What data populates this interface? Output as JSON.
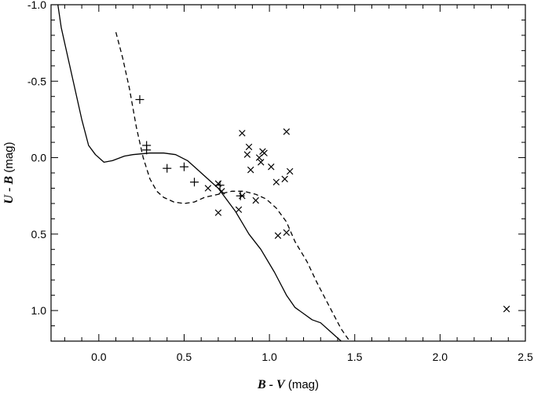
{
  "chart_data": {
    "type": "scatter",
    "title": "",
    "xlabel": {
      "bold_italic": "B - V",
      "plain": " (mag)"
    },
    "ylabel": {
      "bold_italic": "U - B",
      "plain": " (mag)"
    },
    "xlim": [
      -0.28,
      2.5
    ],
    "ylim": [
      1.2,
      -1.0
    ],
    "y_inverted": true,
    "grid": false,
    "x_ticks": [
      0.0,
      0.5,
      1.0,
      1.5,
      2.0,
      2.5
    ],
    "x_tick_labels": [
      "0.0",
      "0.5",
      "1.0",
      "1.5",
      "2.0",
      "2.5"
    ],
    "y_ticks": [
      -1.0,
      -0.5,
      0.0,
      0.5,
      1.0
    ],
    "y_tick_labels": [
      "-1.0",
      "-0.5",
      "0.0",
      "0.5",
      "1.0"
    ],
    "series": [
      {
        "name": "solid curve",
        "kind": "line",
        "style": "solid",
        "points": [
          [
            -0.24,
            -1.0
          ],
          [
            -0.22,
            -0.85
          ],
          [
            -0.18,
            -0.65
          ],
          [
            -0.14,
            -0.45
          ],
          [
            -0.1,
            -0.25
          ],
          [
            -0.06,
            -0.08
          ],
          [
            -0.02,
            -0.02
          ],
          [
            0.03,
            0.03
          ],
          [
            0.08,
            0.02
          ],
          [
            0.15,
            -0.01
          ],
          [
            0.2,
            -0.02
          ],
          [
            0.3,
            -0.03
          ],
          [
            0.38,
            -0.03
          ],
          [
            0.45,
            -0.02
          ],
          [
            0.52,
            0.02
          ],
          [
            0.6,
            0.1
          ],
          [
            0.7,
            0.2
          ],
          [
            0.8,
            0.35
          ],
          [
            0.88,
            0.5
          ],
          [
            0.95,
            0.6
          ],
          [
            1.03,
            0.75
          ],
          [
            1.1,
            0.9
          ],
          [
            1.15,
            0.98
          ],
          [
            1.2,
            1.02
          ],
          [
            1.25,
            1.06
          ],
          [
            1.3,
            1.08
          ],
          [
            1.35,
            1.13
          ],
          [
            1.42,
            1.2
          ]
        ]
      },
      {
        "name": "dashed curve",
        "kind": "line",
        "style": "dashed",
        "points": [
          [
            0.1,
            -0.82
          ],
          [
            0.14,
            -0.65
          ],
          [
            0.18,
            -0.45
          ],
          [
            0.22,
            -0.2
          ],
          [
            0.26,
            0.0
          ],
          [
            0.3,
            0.14
          ],
          [
            0.34,
            0.22
          ],
          [
            0.38,
            0.26
          ],
          [
            0.44,
            0.29
          ],
          [
            0.5,
            0.3
          ],
          [
            0.56,
            0.29
          ],
          [
            0.62,
            0.26
          ],
          [
            0.7,
            0.24
          ],
          [
            0.78,
            0.22
          ],
          [
            0.85,
            0.22
          ],
          [
            0.92,
            0.24
          ],
          [
            0.98,
            0.27
          ],
          [
            1.04,
            0.33
          ],
          [
            1.1,
            0.42
          ],
          [
            1.15,
            0.55
          ],
          [
            1.22,
            0.68
          ],
          [
            1.28,
            0.82
          ],
          [
            1.35,
            0.97
          ],
          [
            1.42,
            1.12
          ],
          [
            1.47,
            1.2
          ]
        ]
      },
      {
        "name": "plus markers",
        "kind": "scatter",
        "marker": "plus",
        "points": [
          [
            0.24,
            -0.38
          ],
          [
            0.28,
            -0.08
          ],
          [
            0.28,
            -0.05
          ],
          [
            0.4,
            0.07
          ],
          [
            0.5,
            0.06
          ],
          [
            0.56,
            0.16
          ],
          [
            0.71,
            0.18
          ],
          [
            0.83,
            0.25
          ]
        ]
      },
      {
        "name": "cross markers",
        "kind": "scatter",
        "marker": "cross",
        "points": [
          [
            0.64,
            0.2
          ],
          [
            0.7,
            0.17
          ],
          [
            0.7,
            0.36
          ],
          [
            0.72,
            0.22
          ],
          [
            0.82,
            0.34
          ],
          [
            0.84,
            0.25
          ],
          [
            0.84,
            -0.16
          ],
          [
            0.87,
            -0.02
          ],
          [
            0.88,
            -0.07
          ],
          [
            0.89,
            0.08
          ],
          [
            0.92,
            0.28
          ],
          [
            0.94,
            0.0
          ],
          [
            0.95,
            0.03
          ],
          [
            0.96,
            -0.04
          ],
          [
            0.97,
            -0.03
          ],
          [
            1.01,
            0.06
          ],
          [
            1.04,
            0.16
          ],
          [
            1.05,
            0.51
          ],
          [
            1.09,
            0.14
          ],
          [
            1.1,
            0.49
          ],
          [
            1.1,
            -0.17
          ],
          [
            1.12,
            0.09
          ],
          [
            2.39,
            0.99
          ]
        ]
      }
    ]
  }
}
